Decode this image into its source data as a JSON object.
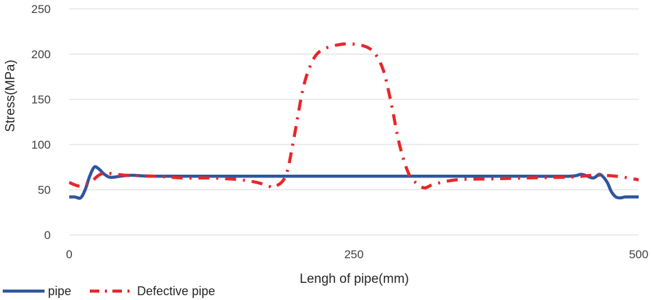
{
  "chart_data": {
    "type": "line",
    "xlabel": "Lengh of pipe(mm)",
    "ylabel": "Stress(MPa)",
    "xlim": [
      0,
      500
    ],
    "ylim": [
      0,
      250
    ],
    "x_ticks": [
      "0",
      "250",
      "500"
    ],
    "y_ticks": [
      "0",
      "50",
      "100",
      "150",
      "200",
      "250"
    ],
    "grid": "horizontal",
    "legend_position": "bottom-left",
    "series": [
      {
        "name": "pipe",
        "color": "#2E569E",
        "style": "solid",
        "x": [
          0,
          5,
          10,
          14,
          18,
          22,
          26,
          30,
          35,
          40,
          45,
          55,
          70,
          100,
          200,
          300,
          400,
          440,
          450,
          460,
          466,
          472,
          476,
          480,
          484,
          488,
          492,
          500
        ],
        "y": [
          42,
          42,
          41,
          50,
          65,
          75,
          73,
          68,
          64,
          64,
          65,
          66,
          65,
          65,
          65,
          65,
          65,
          65,
          67,
          63,
          67,
          59,
          48,
          42,
          41,
          42,
          42,
          42
        ]
      },
      {
        "name": "Defective pipe",
        "color": "#E8262A",
        "style": "dash-dot",
        "x": [
          0,
          10,
          20,
          30,
          50,
          75,
          100,
          125,
          150,
          165,
          175,
          180,
          190,
          197,
          205,
          212,
          220,
          235,
          250,
          265,
          275,
          282,
          290,
          298,
          305,
          312,
          320,
          340,
          370,
          400,
          440,
          460,
          480,
          500
        ],
        "y": [
          58,
          54,
          60,
          68,
          66,
          65,
          63,
          63,
          61,
          58,
          54,
          53,
          65,
          105,
          160,
          188,
          203,
          210,
          211,
          205,
          185,
          150,
          100,
          68,
          57,
          52,
          56,
          61,
          62,
          63,
          64,
          66,
          65,
          61
        ]
      }
    ]
  }
}
